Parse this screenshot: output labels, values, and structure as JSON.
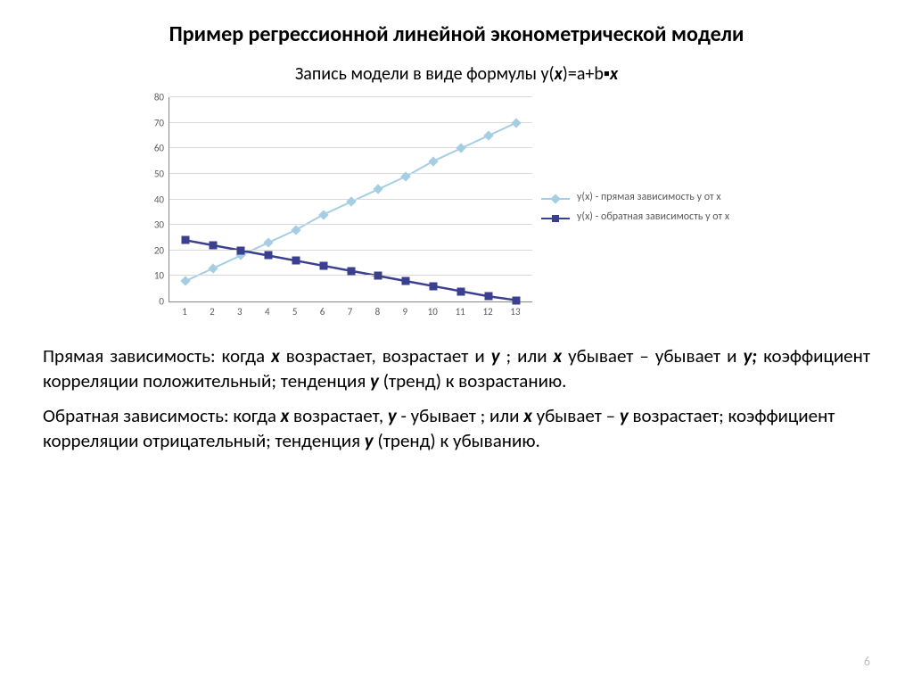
{
  "title": "Пример регрессионной линейной эконометрической модели",
  "subtitle_prefix": "Запись модели в виде формулы y(",
  "subtitle_x": "х",
  "subtitle_mid": ")=a+b▪",
  "subtitle_x2": "х",
  "chart": {
    "type": "line",
    "ylim": [
      0,
      80
    ],
    "ytick_step": 10,
    "yticks": [
      0,
      10,
      20,
      30,
      40,
      50,
      60,
      70,
      80
    ],
    "xticks": [
      1,
      2,
      3,
      4,
      5,
      6,
      7,
      8,
      9,
      10,
      11,
      12,
      13
    ],
    "grid_color": "#d9d9d9",
    "axis_color": "#888888",
    "tick_fontsize": 11,
    "tick_color": "#5a5a5a",
    "background_color": "#ffffff",
    "series": [
      {
        "name": "direct",
        "legend": "y(x) - прямая зависимость y от x",
        "color": "#a6cee3",
        "line_width": 2,
        "marker": "diamond",
        "marker_size": 8,
        "y": [
          8,
          13,
          18,
          23,
          28,
          34,
          39,
          44,
          49,
          55,
          60,
          65,
          70
        ]
      },
      {
        "name": "inverse",
        "legend": "y(x) - обратная зависимость y от x",
        "color": "#3b3f8f",
        "line_width": 2.5,
        "marker": "square",
        "marker_size": 9,
        "y": [
          24,
          22,
          20,
          18,
          16,
          14,
          12,
          10,
          8,
          6,
          4,
          2,
          0.5
        ]
      }
    ]
  },
  "paragraph1": {
    "p1": "Прямая зависимость: когда ",
    "x1": "х",
    "p2": " возрастает, возрастает и ",
    "y1": "y",
    "p3": " ; или ",
    "x2": "х",
    "p4": " убывает – убывает и ",
    "y2": "y;",
    "p5": " коэффициент корреляции положительный; тенденция ",
    "y3": "y",
    "p6": "  (тренд) к возрастанию."
  },
  "paragraph2": {
    "p1": "Обратная зависимость: когда ",
    "x1": "х",
    "p2": " возрастает, ",
    "y1": "y",
    "p3": " - убывает ; или ",
    "x2": "х",
    "p4": " убывает –  ",
    "y2": "y",
    "p5": " возрастает; коэффициент корреляции отрицательный; тенденция ",
    "y3": "y",
    "p6": "  (тренд) к убыванию."
  },
  "page_number": "6"
}
